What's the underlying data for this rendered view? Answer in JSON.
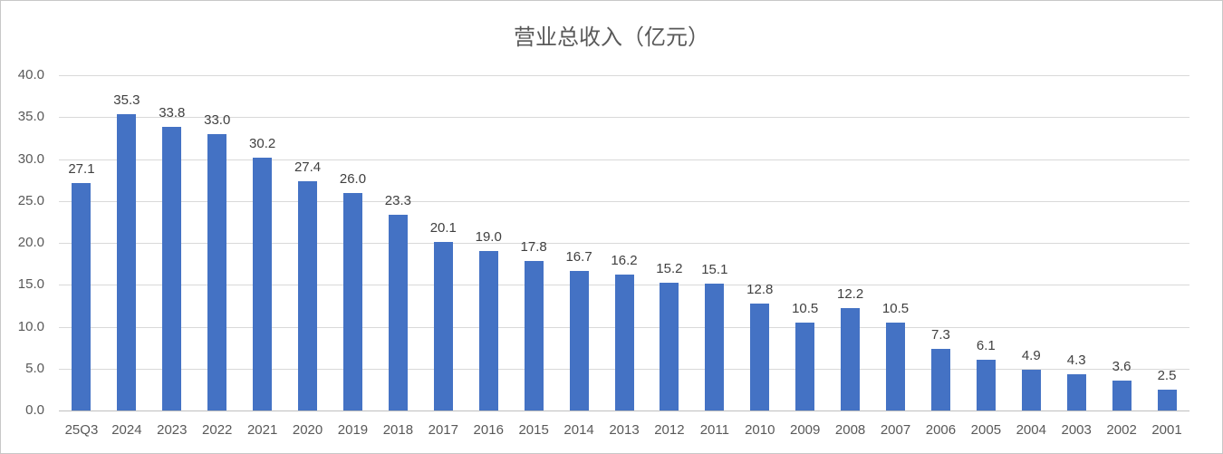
{
  "chart_data": {
    "type": "bar",
    "title": "营业总收入（亿元）",
    "categories": [
      "25Q3",
      "2024",
      "2023",
      "2022",
      "2021",
      "2020",
      "2019",
      "2018",
      "2017",
      "2016",
      "2015",
      "2014",
      "2013",
      "2012",
      "2011",
      "2010",
      "2009",
      "2008",
      "2007",
      "2006",
      "2005",
      "2004",
      "2003",
      "2002",
      "2001"
    ],
    "values": [
      27.1,
      35.3,
      33.8,
      33.0,
      30.2,
      27.4,
      26.0,
      23.3,
      20.1,
      19.0,
      17.8,
      16.7,
      16.2,
      15.2,
      15.1,
      12.8,
      10.5,
      12.2,
      10.5,
      7.3,
      6.1,
      4.9,
      4.3,
      3.6,
      2.5
    ],
    "value_labels": [
      "27.1",
      "35.3",
      "33.8",
      "33.0",
      "30.2",
      "27.4",
      "26.0",
      "23.3",
      "20.1",
      "19.0",
      "17.8",
      "16.7",
      "16.2",
      "15.2",
      "15.1",
      "12.8",
      "10.5",
      "12.2",
      "10.5",
      "7.3",
      "6.1",
      "4.9",
      "4.3",
      "3.6",
      "2.5"
    ],
    "xlabel": "",
    "ylabel": "",
    "ylim": [
      0,
      40
    ],
    "ytick_step": 5,
    "ytick_labels": [
      "0.0",
      "5.0",
      "10.0",
      "15.0",
      "20.0",
      "25.0",
      "30.0",
      "35.0",
      "40.0"
    ],
    "grid": "horizontal",
    "legend": "none",
    "data_labels_position": "above-bar",
    "colors": {
      "bar": "#4472C4",
      "title_text": "#595959",
      "axis_text": "#595959",
      "value_label_text": "#404040",
      "gridline": "#D9D9D9",
      "axis_line": "#BFBFBF",
      "background": "#FFFFFF",
      "border": "#C8C8C8"
    }
  }
}
